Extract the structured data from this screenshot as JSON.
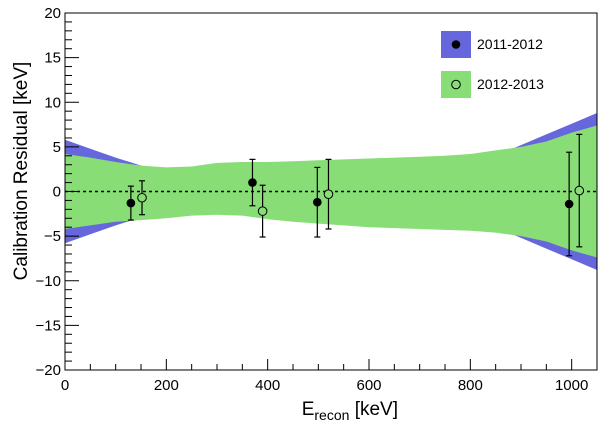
{
  "chart_data": {
    "type": "scatter",
    "xlim": [
      0,
      1050
    ],
    "ylim": [
      -20,
      20
    ],
    "xticks": [
      200,
      400,
      600,
      800,
      1000
    ],
    "yticks": [
      -20,
      -15,
      -10,
      -5,
      0,
      5,
      10,
      15,
      20
    ],
    "xlabel_main": "E",
    "xlabel_sub": "recon",
    "xlabel_unit": " [keV]",
    "ylabel": "Calibration Residual [keV]",
    "zero_line": true,
    "legend": {
      "placement": "top-right"
    },
    "series": [
      {
        "name": "2011-2012",
        "marker": "filled-circle",
        "band_color": "#6666dd",
        "points": [
          {
            "x": 130,
            "y": -1.3,
            "err": 1.9
          },
          {
            "x": 370,
            "y": 1.0,
            "err": 2.6
          },
          {
            "x": 498,
            "y": -1.2,
            "err": 3.9
          },
          {
            "x": 995,
            "y": -1.4,
            "err": 5.8
          }
        ],
        "band": [
          {
            "x": 0,
            "lo": -5.8,
            "hi": 5.8
          },
          {
            "x": 50,
            "lo": -4.8,
            "hi": 4.8
          },
          {
            "x": 100,
            "lo": -3.8,
            "hi": 3.8
          },
          {
            "x": 150,
            "lo": -2.9,
            "hi": 2.9
          },
          {
            "x": 200,
            "lo": -2.3,
            "hi": 2.3
          },
          {
            "x": 250,
            "lo": -2.0,
            "hi": 2.0
          },
          {
            "x": 300,
            "lo": -1.9,
            "hi": 1.9
          },
          {
            "x": 350,
            "lo": -1.9,
            "hi": 1.9
          },
          {
            "x": 400,
            "lo": -2.0,
            "hi": 2.0
          },
          {
            "x": 450,
            "lo": -2.2,
            "hi": 2.2
          },
          {
            "x": 500,
            "lo": -2.4,
            "hi": 2.4
          },
          {
            "x": 550,
            "lo": -2.6,
            "hi": 2.6
          },
          {
            "x": 600,
            "lo": -2.7,
            "hi": 2.7
          },
          {
            "x": 650,
            "lo": -2.9,
            "hi": 2.9
          },
          {
            "x": 700,
            "lo": -3.0,
            "hi": 3.0
          },
          {
            "x": 750,
            "lo": -3.2,
            "hi": 3.2
          },
          {
            "x": 800,
            "lo": -3.4,
            "hi": 3.4
          },
          {
            "x": 850,
            "lo": -4.0,
            "hi": 4.0
          },
          {
            "x": 900,
            "lo": -5.2,
            "hi": 5.2
          },
          {
            "x": 950,
            "lo": -6.4,
            "hi": 6.4
          },
          {
            "x": 1000,
            "lo": -7.6,
            "hi": 7.6
          },
          {
            "x": 1050,
            "lo": -8.8,
            "hi": 8.8
          }
        ]
      },
      {
        "name": "2012-2013",
        "marker": "open-circle",
        "band_color": "#88dd77",
        "points": [
          {
            "x": 152,
            "y": -0.7,
            "err": 1.9
          },
          {
            "x": 390,
            "y": -2.2,
            "err": 2.9
          },
          {
            "x": 520,
            "y": -0.3,
            "err": 3.9
          },
          {
            "x": 1015,
            "y": 0.1,
            "err": 6.3
          }
        ],
        "band": [
          {
            "x": 0,
            "lo": -4.2,
            "hi": 4.2
          },
          {
            "x": 50,
            "lo": -3.8,
            "hi": 3.8
          },
          {
            "x": 100,
            "lo": -3.4,
            "hi": 3.3
          },
          {
            "x": 150,
            "lo": -3.2,
            "hi": 2.9
          },
          {
            "x": 200,
            "lo": -3.0,
            "hi": 2.7
          },
          {
            "x": 250,
            "lo": -2.7,
            "hi": 2.8
          },
          {
            "x": 300,
            "lo": -2.6,
            "hi": 3.2
          },
          {
            "x": 350,
            "lo": -2.7,
            "hi": 3.3
          },
          {
            "x": 400,
            "lo": -3.1,
            "hi": 3.3
          },
          {
            "x": 450,
            "lo": -3.4,
            "hi": 3.4
          },
          {
            "x": 500,
            "lo": -3.6,
            "hi": 3.5
          },
          {
            "x": 550,
            "lo": -3.8,
            "hi": 3.6
          },
          {
            "x": 600,
            "lo": -4.0,
            "hi": 3.7
          },
          {
            "x": 650,
            "lo": -4.1,
            "hi": 3.8
          },
          {
            "x": 700,
            "lo": -4.2,
            "hi": 3.9
          },
          {
            "x": 750,
            "lo": -4.3,
            "hi": 4.0
          },
          {
            "x": 800,
            "lo": -4.4,
            "hi": 4.2
          },
          {
            "x": 850,
            "lo": -4.6,
            "hi": 4.6
          },
          {
            "x": 900,
            "lo": -5.0,
            "hi": 5.0
          },
          {
            "x": 950,
            "lo": -5.6,
            "hi": 5.6
          },
          {
            "x": 1000,
            "lo": -6.6,
            "hi": 6.6
          },
          {
            "x": 1050,
            "lo": -7.4,
            "hi": 7.4
          }
        ]
      }
    ]
  }
}
